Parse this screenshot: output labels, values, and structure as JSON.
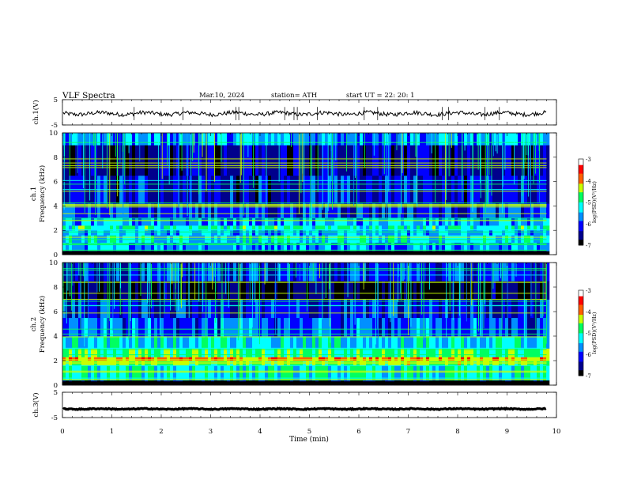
{
  "header": {
    "title": "VLF  Spectra",
    "date": "Mar.10, 2024",
    "station": "station= ATH",
    "start": "start  UT  =    22: 20: 1"
  },
  "chart_data": [
    {
      "type": "line",
      "name": "ch1_waveform",
      "ylabel": "ch.1(V)",
      "ylim": [
        -5,
        5
      ],
      "yticks": [
        "5",
        "-5"
      ],
      "xlim": [
        0,
        10
      ],
      "level": -0.5,
      "line_ends_at": 9.8
    },
    {
      "type": "heatmap",
      "name": "ch1_spectrogram",
      "ylabel": "ch.1\nFrequency (kHz)",
      "ylim": [
        0,
        10
      ],
      "yticks": [
        "0",
        "2",
        "4",
        "6",
        "8",
        "10"
      ],
      "xlim": [
        0,
        10
      ],
      "data_ends_at": 9.8,
      "colorbar": {
        "label": "log(PSD)(V²/Hz)",
        "range": [
          -7,
          -3
        ],
        "ticks": [
          "-3",
          "-4",
          "-5",
          "-6",
          "-7"
        ]
      },
      "bands": [
        {
          "f0": 0.0,
          "f1": 0.3,
          "level": -7
        },
        {
          "f0": 0.3,
          "f1": 1.0,
          "level": -5.6
        },
        {
          "f0": 1.0,
          "f1": 1.6,
          "level": -5.3
        },
        {
          "f0": 1.6,
          "f1": 2.0,
          "level": -5.5
        },
        {
          "f0": 2.0,
          "f1": 2.4,
          "level": -5.0
        },
        {
          "f0": 2.4,
          "f1": 3.0,
          "level": -5.6
        },
        {
          "f0": 3.0,
          "f1": 4.2,
          "level": -6.0
        },
        {
          "f0": 4.2,
          "f1": 6.5,
          "level": -6.3
        },
        {
          "f0": 6.5,
          "f1": 9.0,
          "level": -6.5
        },
        {
          "f0": 9.0,
          "f1": 10.0,
          "level": -5.6
        }
      ]
    },
    {
      "type": "heatmap",
      "name": "ch2_spectrogram",
      "ylabel": "ch.2\nFrequency (kHz)",
      "ylim": [
        0,
        10
      ],
      "yticks": [
        "0",
        "2",
        "4",
        "6",
        "8",
        "10"
      ],
      "xlim": [
        0,
        10
      ],
      "data_ends_at": 9.8,
      "colorbar": {
        "label": "log(PSD)(V²/Hz)",
        "range": [
          -7,
          -3
        ],
        "ticks": [
          "-3",
          "-4",
          "-5",
          "-6",
          "-7"
        ]
      },
      "bands": [
        {
          "f0": 0.0,
          "f1": 0.4,
          "level": -7
        },
        {
          "f0": 0.4,
          "f1": 1.6,
          "level": -5.2
        },
        {
          "f0": 1.6,
          "f1": 2.0,
          "level": -4.6
        },
        {
          "f0": 2.0,
          "f1": 2.3,
          "level": -4.0
        },
        {
          "f0": 2.3,
          "f1": 3.0,
          "level": -4.8
        },
        {
          "f0": 3.0,
          "f1": 4.0,
          "level": -5.3
        },
        {
          "f0": 4.0,
          "f1": 5.5,
          "level": -5.9
        },
        {
          "f0": 5.5,
          "f1": 7.0,
          "level": -6.2
        },
        {
          "f0": 7.0,
          "f1": 8.5,
          "level": -6.8
        },
        {
          "f0": 8.5,
          "f1": 10.0,
          "level": -6.1
        }
      ]
    },
    {
      "type": "line",
      "name": "ch3_waveform",
      "ylabel": "ch.3(V)",
      "ylim": [
        -5,
        5
      ],
      "yticks": [
        "5",
        "-5"
      ],
      "xlim": [
        0,
        10
      ],
      "level": -1.6,
      "line_ends_at": 9.8
    }
  ],
  "x_axis": {
    "label": "Time  (min)",
    "ticks": [
      "0",
      "1",
      "2",
      "3",
      "4",
      "5",
      "6",
      "7",
      "8",
      "9",
      "10"
    ]
  },
  "colorscale": [
    "#000000",
    "#00008c",
    "#0000ff",
    "#0090ff",
    "#00ffff",
    "#00ff60",
    "#c8ff00",
    "#ff6000",
    "#ff0000",
    "#ffffff"
  ]
}
